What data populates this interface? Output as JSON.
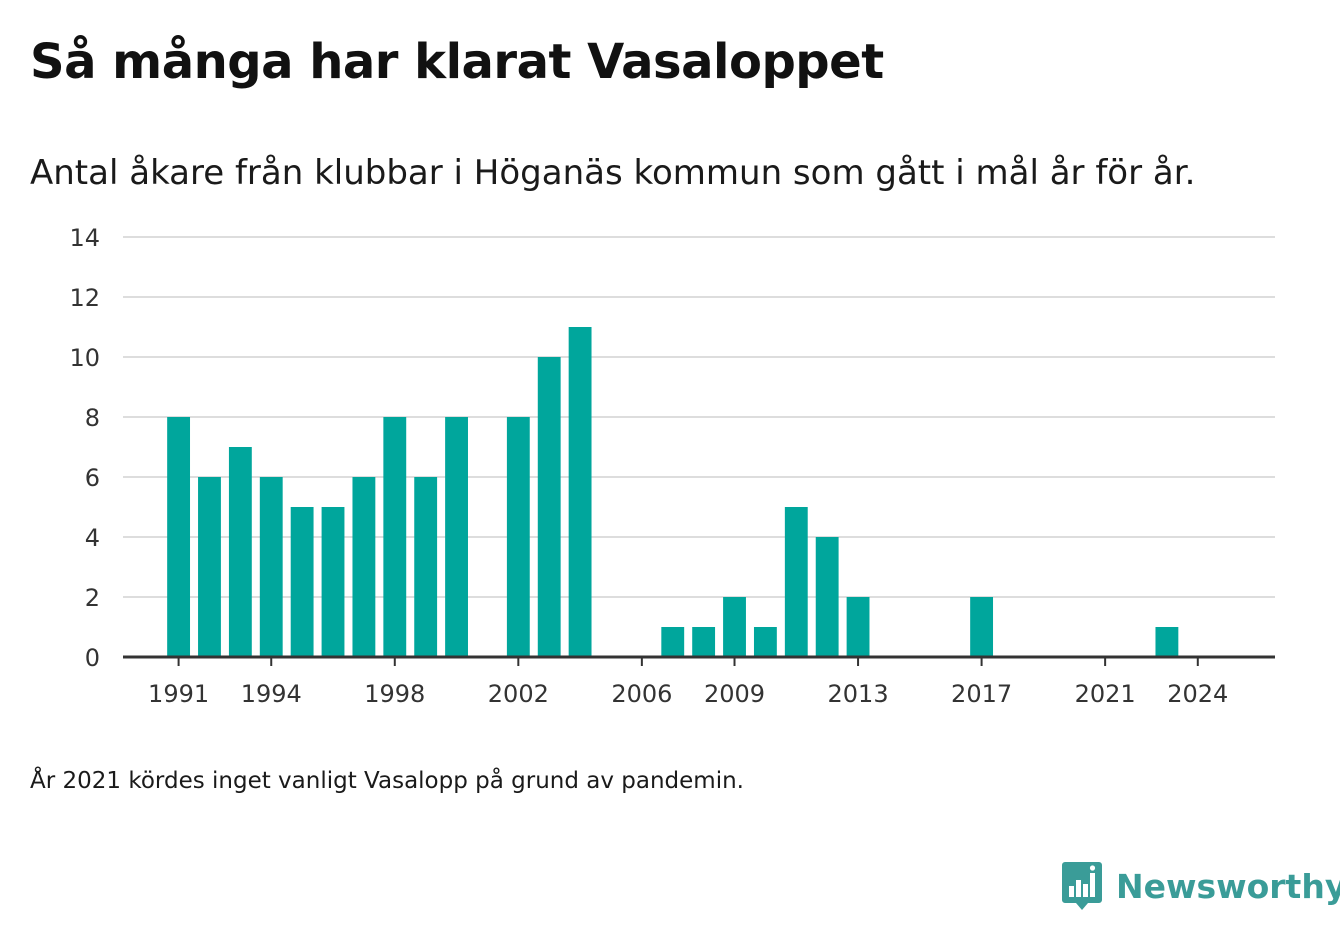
{
  "header": {
    "title": "Så många har klarat Vasaloppet",
    "subtitle": "Antal åkare från klubbar i Höganäs kommun som gått i mål år för år."
  },
  "footer": {
    "note": "År 2021 kördes inget vanligt Vasalopp på grund av pandemin.",
    "brand": "Newsworthy"
  },
  "colors": {
    "bar": "#00a69c",
    "brand": "#3a9c98",
    "grid": "#dddddd",
    "axis": "#333333",
    "text": "#1a1a1a"
  },
  "icons": {
    "brand_logo": "bar-chart-speech-bubble-icon"
  },
  "chart_data": {
    "type": "bar",
    "x": [
      1991,
      1992,
      1993,
      1994,
      1995,
      1996,
      1997,
      1998,
      1999,
      2000,
      2002,
      2003,
      2004,
      2007,
      2008,
      2009,
      2010,
      2011,
      2012,
      2013,
      2017,
      2023
    ],
    "values": [
      8,
      6,
      7,
      6,
      5,
      5,
      6,
      8,
      6,
      8,
      8,
      10,
      11,
      1,
      1,
      2,
      1,
      5,
      4,
      2,
      2,
      1
    ],
    "xlim": [
      1989.2,
      2026.5
    ],
    "ylim": [
      0,
      14
    ],
    "yticks": [
      0,
      2,
      4,
      6,
      8,
      10,
      12,
      14
    ],
    "xticks": [
      1991,
      1994,
      1998,
      2002,
      2006,
      2009,
      2013,
      2017,
      2021,
      2024
    ],
    "grid": true,
    "xlabel": "",
    "ylabel": ""
  }
}
